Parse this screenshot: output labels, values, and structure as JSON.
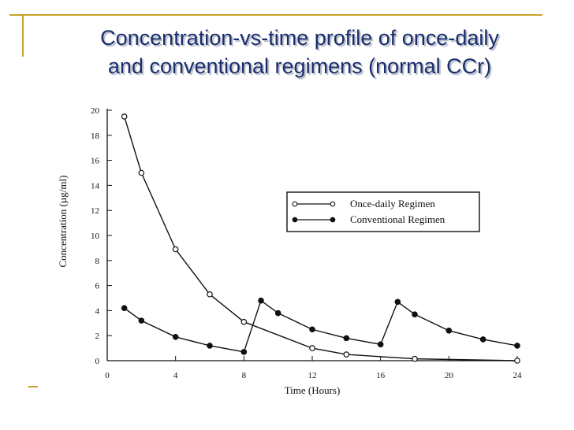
{
  "slide": {
    "title_line1": "Concentration-vs-time profile of once-daily",
    "title_line2": "and conventional regimens (normal CCr)"
  },
  "colors": {
    "title": "#1a2e6e",
    "accent": "#c9a227",
    "ink": "#111111"
  },
  "chart_data": {
    "type": "line",
    "xlabel": "Time (Hours)",
    "ylabel": "Concentration (µg/ml)",
    "xlim": [
      0,
      24
    ],
    "ylim": [
      0,
      20
    ],
    "x_ticks": [
      0,
      4,
      8,
      12,
      16,
      20,
      24
    ],
    "y_ticks": [
      0,
      2,
      4,
      6,
      8,
      10,
      12,
      14,
      16,
      18,
      20
    ],
    "legend_position": "center-right",
    "series": [
      {
        "name": "Once-daily Regimen",
        "marker": "open-circle",
        "points": [
          [
            1,
            19.5
          ],
          [
            2,
            15.0
          ],
          [
            4,
            8.9
          ],
          [
            6,
            5.3
          ],
          [
            8,
            3.1
          ],
          [
            12,
            1.0
          ],
          [
            14,
            0.5
          ],
          [
            18,
            0.15
          ],
          [
            24,
            0.0
          ]
        ]
      },
      {
        "name": "Conventional Regimen",
        "marker": "filled-circle",
        "points": [
          [
            1,
            4.2
          ],
          [
            2,
            3.2
          ],
          [
            4,
            1.9
          ],
          [
            6,
            1.2
          ],
          [
            8,
            0.7
          ],
          [
            9,
            4.8
          ],
          [
            10,
            3.8
          ],
          [
            12,
            2.5
          ],
          [
            14,
            1.8
          ],
          [
            16,
            1.3
          ],
          [
            17,
            4.7
          ],
          [
            18,
            3.7
          ],
          [
            20,
            2.4
          ],
          [
            22,
            1.7
          ],
          [
            24,
            1.2
          ]
        ]
      }
    ]
  }
}
